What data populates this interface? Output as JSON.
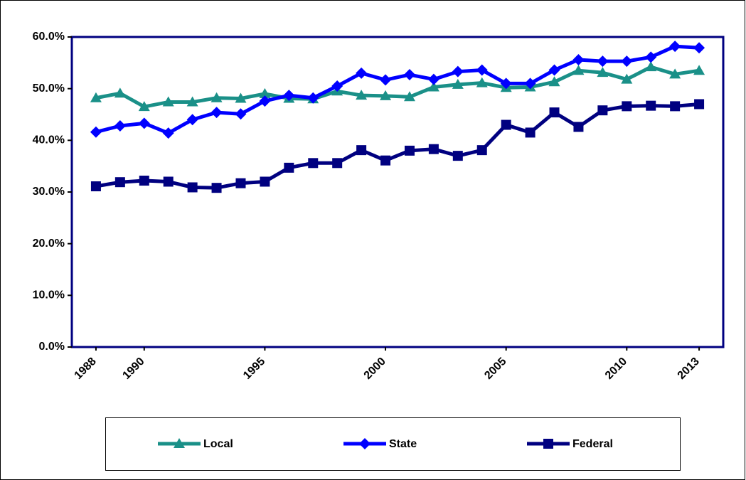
{
  "chart_data": {
    "type": "line",
    "x": [
      1988,
      1989,
      1990,
      1991,
      1992,
      1993,
      1994,
      1995,
      1996,
      1997,
      1998,
      1999,
      2000,
      2001,
      2002,
      2003,
      2004,
      2005,
      2006,
      2007,
      2008,
      2009,
      2010,
      2011,
      2012,
      2013
    ],
    "xlim": [
      1987,
      2014
    ],
    "xticks": [
      1988,
      1990,
      1995,
      2000,
      2005,
      2010,
      2013
    ],
    "ylim": [
      0,
      60
    ],
    "yticks": [
      {
        "value": 0,
        "label": "0.0%"
      },
      {
        "value": 10,
        "label": "10.0%"
      },
      {
        "value": 20,
        "label": "20.0%"
      },
      {
        "value": 30,
        "label": "30.0%"
      },
      {
        "value": 40,
        "label": "40.0%"
      },
      {
        "value": 50,
        "label": "50.0%"
      },
      {
        "value": 60,
        "label": "60.0%"
      }
    ],
    "legend": "bottom",
    "series": [
      {
        "name": "Local",
        "color": "#1a9088",
        "marker": "triangle",
        "values": [
          48.2,
          49.1,
          46.5,
          47.4,
          47.4,
          48.2,
          48.1,
          49.0,
          48.1,
          48.0,
          49.5,
          48.7,
          48.6,
          48.4,
          50.3,
          50.8,
          51.1,
          50.2,
          50.3,
          51.3,
          53.5,
          53.1,
          51.8,
          54.2,
          52.8,
          53.5
        ]
      },
      {
        "name": "State",
        "color": "#0000ff",
        "marker": "diamond",
        "values": [
          41.6,
          42.8,
          43.3,
          41.4,
          44.0,
          45.4,
          45.1,
          47.6,
          48.7,
          48.2,
          50.5,
          53.0,
          51.7,
          52.7,
          51.8,
          53.3,
          53.6,
          51.0,
          51.0,
          53.6,
          55.6,
          55.3,
          55.3,
          56.1,
          58.2,
          57.9
        ]
      },
      {
        "name": "Federal",
        "color": "#000080",
        "marker": "square",
        "values": [
          31.1,
          31.9,
          32.2,
          32.0,
          30.9,
          30.8,
          31.7,
          32.0,
          34.7,
          35.6,
          35.6,
          38.1,
          36.1,
          38.0,
          38.3,
          37.0,
          38.1,
          43.0,
          41.5,
          45.4,
          42.6,
          45.8,
          46.6,
          46.7,
          46.6,
          47.0
        ]
      }
    ]
  }
}
